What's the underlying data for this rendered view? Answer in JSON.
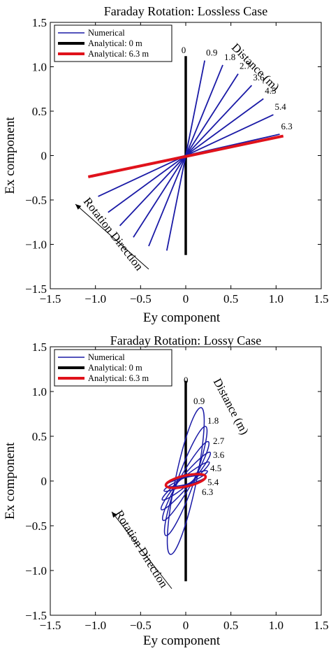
{
  "chart_data": [
    {
      "type": "line",
      "title": "Faraday Rotation: Lossless Case",
      "xlabel": "Ey component",
      "ylabel": "Ex component",
      "xlim": [
        -1.5,
        1.5
      ],
      "ylim": [
        -1.5,
        1.5
      ],
      "xticks": [
        "−1.5",
        "−1.0",
        "−0.5",
        "0",
        "0.5",
        "1.0",
        "1.5"
      ],
      "yticks": [
        "1.5",
        "1.0",
        "0.5",
        "0",
        "−0.5",
        "−1.0",
        "−1.5"
      ],
      "xtick_values": [
        -1.5,
        -1.0,
        -0.5,
        0,
        0.5,
        1.0,
        1.5
      ],
      "ytick_values": [
        1.5,
        1.0,
        0.5,
        0,
        -0.5,
        -1.0,
        -1.5
      ],
      "grid": false,
      "legend_position": "top-left",
      "legend": [
        {
          "label": "Numerical",
          "color": "#1a1aa6"
        },
        {
          "label": "Analytical: 0 m",
          "color": "#000000"
        },
        {
          "label": "Analytical: 6.3 m",
          "color": "#e0121b"
        }
      ],
      "distance_annotation": "Distance (m)",
      "direction_annotation": "Rotation Direction",
      "numerical_color": "#1a1aa6",
      "series": [
        {
          "distance_label": "0",
          "end_x": 0.0,
          "end_y": 1.1
        },
        {
          "distance_label": "0.9",
          "end_x": 0.21,
          "end_y": 1.07
        },
        {
          "distance_label": "1.8",
          "end_x": 0.41,
          "end_y": 1.02
        },
        {
          "distance_label": "2.7",
          "end_x": 0.58,
          "end_y": 0.92
        },
        {
          "distance_label": "3.6",
          "end_x": 0.73,
          "end_y": 0.79
        },
        {
          "distance_label": "4.5",
          "end_x": 0.86,
          "end_y": 0.64
        },
        {
          "distance_label": "5.4",
          "end_x": 0.97,
          "end_y": 0.46
        },
        {
          "distance_label": "6.3",
          "end_x": 1.04,
          "end_y": 0.24
        }
      ],
      "analytical": [
        {
          "name": "Analytical: 0 m",
          "color": "#000000",
          "x": [
            0,
            0
          ],
          "y": [
            -1.12,
            1.12
          ]
        },
        {
          "name": "Analytical: 6.3 m",
          "color": "#e0121b",
          "x": [
            -1.08,
            1.08
          ],
          "y": [
            -0.24,
            0.22
          ]
        }
      ]
    },
    {
      "type": "line",
      "title": "Faraday Rotation: Lossy Case",
      "xlabel": "Ey component",
      "ylabel": "Ex component",
      "xlim": [
        -1.5,
        1.5
      ],
      "ylim": [
        -1.5,
        1.5
      ],
      "xticks": [
        "−1.5",
        "−1.0",
        "−0.5",
        "0",
        "0.5",
        "1.0",
        "1.5"
      ],
      "yticks": [
        "1.5",
        "1.0",
        "0.5",
        "0",
        "−0.5",
        "−1.0",
        "−1.5"
      ],
      "xtick_values": [
        -1.5,
        -1.0,
        -0.5,
        0,
        0.5,
        1.0,
        1.5
      ],
      "ytick_values": [
        1.5,
        1.0,
        0.5,
        0,
        -0.5,
        -1.0,
        -1.5
      ],
      "grid": false,
      "legend_position": "top-left",
      "legend": [
        {
          "label": "Numerical",
          "color": "#1a1aa6"
        },
        {
          "label": "Analytical: 0 m",
          "color": "#000000"
        },
        {
          "label": "Analytical: 6.3 m",
          "color": "#e0121b"
        }
      ],
      "distance_annotation": "Distance (m)",
      "direction_annotation": "Rotation Direction",
      "numerical_color": "#1a1aa6",
      "series": [
        {
          "distance_label": "0.9",
          "major_axis_end_x": 0.17,
          "major_axis_end_y": 0.82
        },
        {
          "distance_label": "1.8",
          "major_axis_end_x": 0.22,
          "major_axis_end_y": 0.61
        },
        {
          "distance_label": "2.7",
          "major_axis_end_x": 0.25,
          "major_axis_end_y": 0.44
        },
        {
          "distance_label": "3.6",
          "major_axis_end_x": 0.27,
          "major_axis_end_y": 0.32
        },
        {
          "distance_label": "4.5",
          "major_axis_end_x": 0.26,
          "major_axis_end_y": 0.21
        },
        {
          "distance_label": "5.4",
          "major_axis_end_x": 0.24,
          "major_axis_end_y": 0.11
        },
        {
          "distance_label": "6.3",
          "major_axis_end_x": 0.22,
          "major_axis_end_y": 0.05
        }
      ],
      "distance_labels": [
        "0",
        "0.9",
        "1.8",
        "2.7",
        "3.6",
        "4.5",
        "5.4",
        "6.3"
      ],
      "analytical": [
        {
          "name": "Analytical: 0 m",
          "color": "#000000",
          "x": [
            0,
            0
          ],
          "y": [
            -1.12,
            1.12
          ]
        },
        {
          "name": "Analytical: 6.3 m",
          "color": "#e0121b",
          "shape": "ellipse",
          "major_axis_end_x": 0.22,
          "major_axis_end_y": 0.05,
          "minor_semi_axis": 0.06
        }
      ]
    }
  ]
}
